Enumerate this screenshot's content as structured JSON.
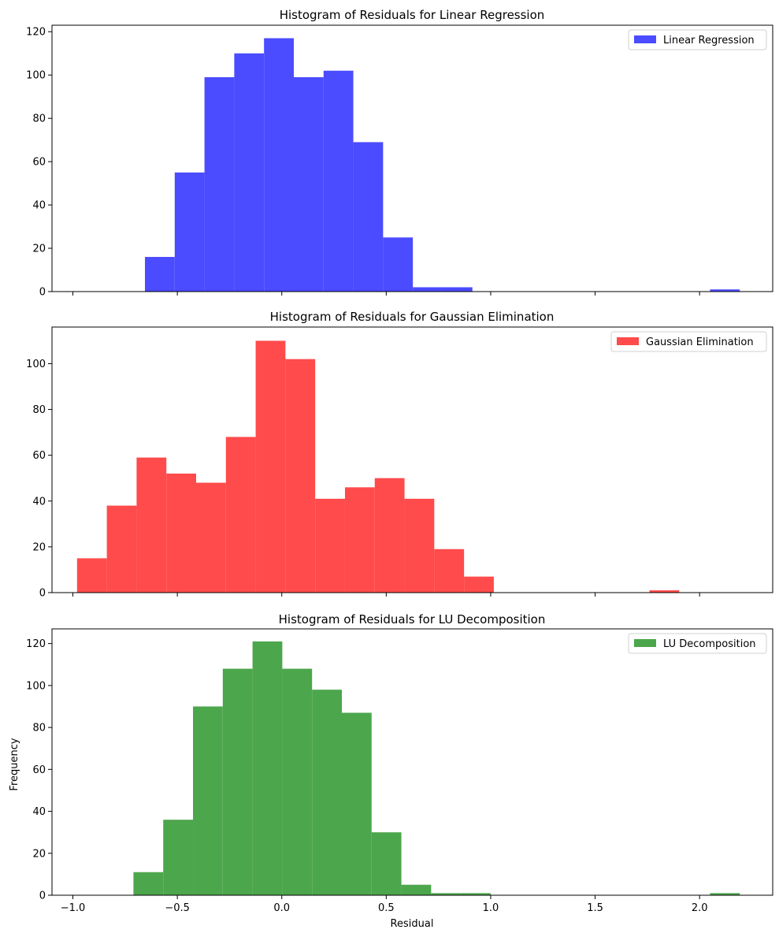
{
  "chart_data": [
    {
      "type": "bar",
      "title": "Histogram of Residuals for Linear Regression",
      "legend": "Linear Regression",
      "color": "#4b4bff",
      "xlabel": "",
      "ylabel": "",
      "xlim": [
        -1.1,
        2.35
      ],
      "ylim": [
        0,
        123
      ],
      "yticks": [
        0,
        20,
        40,
        60,
        80,
        100,
        120
      ],
      "bin_width": 0.1425,
      "bins": [
        {
          "x0": -0.655,
          "value": 16
        },
        {
          "x0": -0.5125,
          "value": 55
        },
        {
          "x0": -0.37,
          "value": 99
        },
        {
          "x0": -0.2275,
          "value": 110
        },
        {
          "x0": -0.085,
          "value": 117
        },
        {
          "x0": 0.0575,
          "value": 99
        },
        {
          "x0": 0.2,
          "value": 102
        },
        {
          "x0": 0.3425,
          "value": 69
        },
        {
          "x0": 0.485,
          "value": 25
        },
        {
          "x0": 0.6275,
          "value": 2
        },
        {
          "x0": 0.77,
          "value": 2
        },
        {
          "x0": 2.05,
          "value": 1
        }
      ]
    },
    {
      "type": "bar",
      "title": "Histogram of Residuals for Gaussian Elimination",
      "legend": "Gaussian Elimination",
      "color": "#ff4b4b",
      "xlabel": "",
      "ylabel": "",
      "xlim": [
        -1.1,
        2.35
      ],
      "ylim": [
        0,
        116
      ],
      "yticks": [
        0,
        20,
        40,
        60,
        80,
        100
      ],
      "bin_width": 0.1425,
      "bins": [
        {
          "x0": -0.98,
          "value": 15
        },
        {
          "x0": -0.8375,
          "value": 38
        },
        {
          "x0": -0.695,
          "value": 59
        },
        {
          "x0": -0.5525,
          "value": 52
        },
        {
          "x0": -0.41,
          "value": 48
        },
        {
          "x0": -0.2675,
          "value": 68
        },
        {
          "x0": -0.125,
          "value": 110
        },
        {
          "x0": 0.0175,
          "value": 102
        },
        {
          "x0": 0.16,
          "value": 41
        },
        {
          "x0": 0.3025,
          "value": 46
        },
        {
          "x0": 0.445,
          "value": 50
        },
        {
          "x0": 0.5875,
          "value": 41
        },
        {
          "x0": 0.73,
          "value": 19
        },
        {
          "x0": 0.8725,
          "value": 7
        },
        {
          "x0": 1.76,
          "value": 1
        }
      ]
    },
    {
      "type": "bar",
      "title": "Histogram of Residuals for LU Decomposition",
      "legend": "LU Decomposition",
      "color": "#4ca64c",
      "xlabel": "Residual",
      "ylabel": "Frequency",
      "xlim": [
        -1.1,
        2.35
      ],
      "ylim": [
        0,
        127
      ],
      "yticks": [
        0,
        20,
        40,
        60,
        80,
        100,
        120
      ],
      "xticks": [
        "−1.0",
        "−0.5",
        "0.0",
        "0.5",
        "1.0",
        "1.5",
        "2.0"
      ],
      "xtick_values": [
        -1.0,
        -0.5,
        0.0,
        0.5,
        1.0,
        1.5,
        2.0
      ],
      "bin_width": 0.1425,
      "bins": [
        {
          "x0": -0.71,
          "value": 11
        },
        {
          "x0": -0.5675,
          "value": 36
        },
        {
          "x0": -0.425,
          "value": 90
        },
        {
          "x0": -0.2825,
          "value": 108
        },
        {
          "x0": -0.14,
          "value": 121
        },
        {
          "x0": 0.0025,
          "value": 108
        },
        {
          "x0": 0.145,
          "value": 98
        },
        {
          "x0": 0.2875,
          "value": 87
        },
        {
          "x0": 0.43,
          "value": 30
        },
        {
          "x0": 0.5725,
          "value": 5
        },
        {
          "x0": 0.715,
          "value": 1
        },
        {
          "x0": 0.8575,
          "value": 1
        },
        {
          "x0": 2.05,
          "value": 1
        }
      ]
    }
  ]
}
